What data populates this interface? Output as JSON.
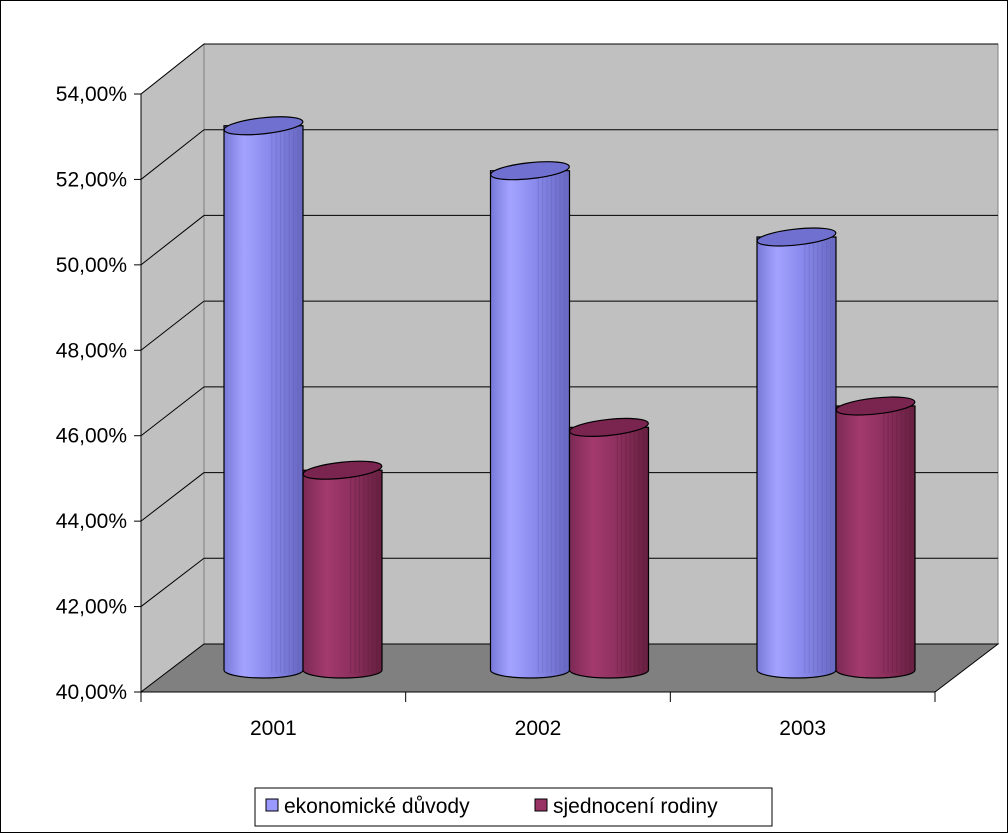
{
  "chart_data": {
    "type": "bar",
    "style": "3d-cylinder",
    "categories": [
      "2001",
      "2002",
      "2003"
    ],
    "series": [
      {
        "name": "ekonomické důvody",
        "values": [
          52.65,
          51.6,
          50.05
        ],
        "color": "#9999FF"
      },
      {
        "name": "sjednocení rodiny",
        "values": [
          44.6,
          45.6,
          46.1
        ],
        "color": "#993366"
      }
    ],
    "ylim": [
      40,
      54
    ],
    "yticks": [
      "40,00%",
      "42,00%",
      "44,00%",
      "46,00%",
      "48,00%",
      "50,00%",
      "52,00%",
      "54,00%"
    ],
    "grid": true,
    "legend_position": "bottom",
    "wall_color": "#C0C0C0",
    "floor_color": "#808080"
  }
}
